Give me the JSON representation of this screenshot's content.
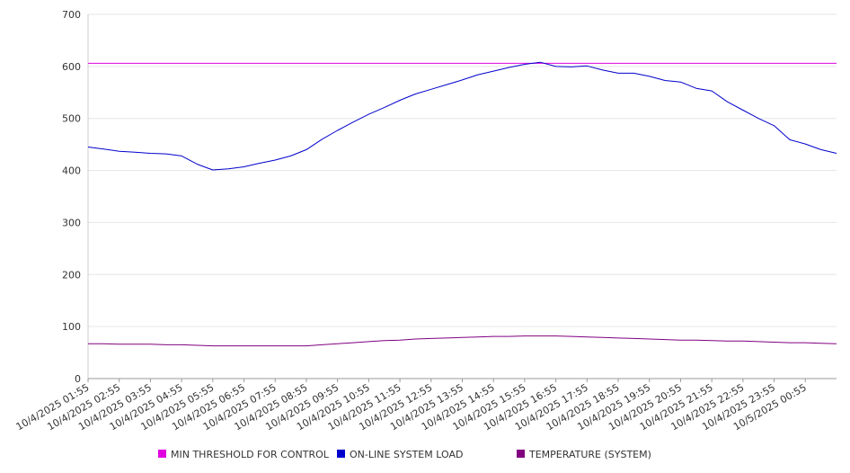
{
  "chart_data": {
    "type": "line",
    "title": "",
    "xlabel": "",
    "ylabel": "",
    "ylim": [
      0,
      700
    ],
    "yticks": [
      0,
      100,
      200,
      300,
      400,
      500,
      600,
      700
    ],
    "grid": true,
    "legend_position": "bottom",
    "x_tick_labels": [
      "10/4/2025 01:55",
      "10/4/2025 02:55",
      "10/4/2025 03:55",
      "10/4/2025 04:55",
      "10/4/2025 05:55",
      "10/4/2025 06:55",
      "10/4/2025 07:55",
      "10/4/2025 08:55",
      "10/4/2025 09:55",
      "10/4/2025 10:55",
      "10/4/2025 11:55",
      "10/4/2025 12:55",
      "10/4/2025 13:55",
      "10/4/2025 14:55",
      "10/4/2025 15:55",
      "10/4/2025 16:55",
      "10/4/2025 17:55",
      "10/4/2025 18:55",
      "10/4/2025 19:55",
      "10/4/2025 20:55",
      "10/4/2025 21:55",
      "10/4/2025 22:55",
      "10/4/2025 23:55",
      "10/5/2025 00:55"
    ],
    "x_hours": [
      0,
      0.5,
      1,
      1.5,
      2,
      2.5,
      3,
      3.5,
      4,
      4.5,
      5,
      5.5,
      6,
      6.5,
      7,
      7.5,
      8,
      8.5,
      9,
      9.5,
      10,
      10.5,
      11,
      11.5,
      12,
      12.5,
      13,
      13.5,
      14,
      14.5,
      15,
      15.5,
      16,
      16.5,
      17,
      17.5,
      18,
      18.5,
      19,
      19.5,
      20,
      20.5,
      21,
      21.5,
      22,
      22.5,
      23,
      23.5,
      24
    ],
    "series": [
      {
        "name": "MIN THRESHOLD FOR CONTROL",
        "color": "#e000e0",
        "values": [
          606,
          606,
          606,
          606,
          606,
          606,
          606,
          606,
          606,
          606,
          606,
          606,
          606,
          606,
          606,
          606,
          606,
          606,
          606,
          606,
          606,
          606,
          606,
          606,
          606,
          606,
          606,
          606,
          606,
          606,
          606,
          606,
          606,
          606,
          606,
          606,
          606,
          606,
          606,
          606,
          606,
          606,
          606,
          606,
          606,
          606,
          606,
          606,
          606
        ]
      },
      {
        "name": "ON-LINE SYSTEM LOAD",
        "color": "#0000cc",
        "values": [
          445,
          441,
          437,
          435,
          433,
          432,
          428,
          412,
          401,
          403,
          407,
          414,
          420,
          428,
          440,
          460,
          477,
          493,
          508,
          521,
          535,
          547,
          556,
          565,
          574,
          584,
          591,
          598,
          604,
          608,
          600,
          599,
          601,
          593,
          587,
          587,
          581,
          573,
          570,
          558,
          553,
          532,
          516,
          500,
          486,
          459,
          451,
          440,
          433
        ]
      },
      {
        "name": "TEMPERATURE (SYSTEM)",
        "color": "#800080",
        "values": [
          67,
          67,
          66,
          66,
          66,
          65,
          65,
          64,
          63,
          63,
          63,
          63,
          63,
          63,
          63,
          65,
          67,
          69,
          71,
          73,
          74,
          76,
          77,
          78,
          79,
          80,
          81,
          81,
          82,
          82,
          82,
          81,
          80,
          79,
          78,
          77,
          76,
          75,
          74,
          74,
          73,
          72,
          72,
          71,
          70,
          69,
          69,
          68,
          67
        ]
      }
    ]
  }
}
